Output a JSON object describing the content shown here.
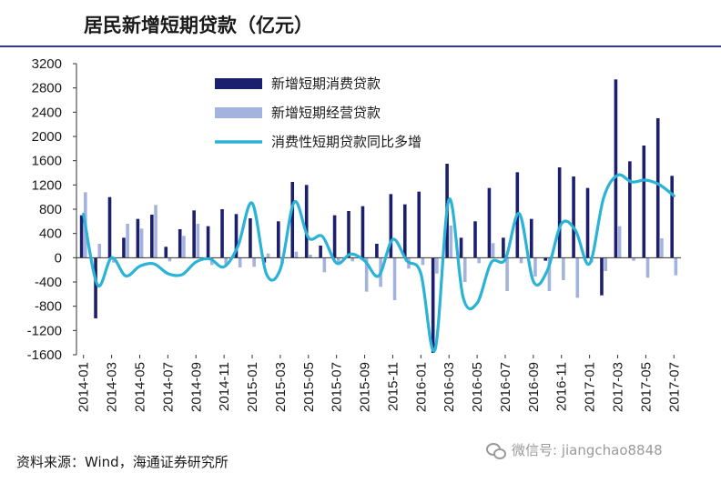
{
  "title": "居民新增短期贷款（亿元）",
  "source": "资料来源：Wind，海通证券研究所",
  "watermark": "微信号: jiangchao8848",
  "watermark_icon": "wechat-icon",
  "colors": {
    "consumer_bar": "#1c1f6e",
    "business_bar": "#a4b3de",
    "yoy_line": "#2ab3d6",
    "title_rule": "#2f3c8c"
  },
  "chart_data": {
    "type": "bar",
    "title": "居民新增短期贷款（亿元）",
    "xlabel": "",
    "ylabel": "",
    "ylim": [
      -1600,
      3200
    ],
    "yticks": [
      3200,
      2800,
      2400,
      2000,
      1600,
      1200,
      800,
      400,
      0,
      -400,
      -800,
      -1200,
      -1600
    ],
    "legend_position": "top-center",
    "grid": false,
    "categories": [
      "2014-01",
      "2014-02",
      "2014-03",
      "2014-04",
      "2014-05",
      "2014-06",
      "2014-07",
      "2014-08",
      "2014-09",
      "2014-10",
      "2014-11",
      "2014-12",
      "2015-01",
      "2015-02",
      "2015-03",
      "2015-04",
      "2015-05",
      "2015-06",
      "2015-07",
      "2015-08",
      "2015-09",
      "2015-10",
      "2015-11",
      "2015-12",
      "2016-01",
      "2016-02",
      "2016-03",
      "2016-04",
      "2016-05",
      "2016-06",
      "2016-07",
      "2016-08",
      "2016-09",
      "2016-10",
      "2016-11",
      "2016-12",
      "2017-01",
      "2017-02",
      "2017-03",
      "2017-04",
      "2017-05",
      "2017-06",
      "2017-07"
    ],
    "xtick_labels": [
      "2014-01",
      "2014-03",
      "2014-05",
      "2014-07",
      "2014-09",
      "2014-11",
      "2015-01",
      "2015-03",
      "2015-05",
      "2015-07",
      "2015-09",
      "2015-11",
      "2016-01",
      "2016-03",
      "2016-05",
      "2016-07",
      "2016-09",
      "2016-11",
      "2017-01",
      "2017-03",
      "2017-05",
      "2017-07"
    ],
    "series": [
      {
        "name": "新增短期消费贷款",
        "kind": "bar",
        "values": [
          700,
          -1000,
          1000,
          330,
          640,
          710,
          180,
          470,
          780,
          520,
          800,
          720,
          650,
          -80,
          600,
          1250,
          1200,
          200,
          700,
          770,
          850,
          230,
          1050,
          880,
          1090,
          -1570,
          1550,
          330,
          600,
          1150,
          330,
          1410,
          640,
          -50,
          1490,
          1340,
          1150,
          -620,
          2940,
          1590,
          1850,
          2300,
          1350
        ]
      },
      {
        "name": "新增短期经营贷款",
        "kind": "bar",
        "values": [
          1080,
          230,
          -80,
          560,
          480,
          870,
          -60,
          360,
          560,
          -120,
          -120,
          -160,
          -150,
          70,
          -100,
          100,
          50,
          -240,
          -100,
          -60,
          -560,
          -480,
          -700,
          -180,
          -120,
          -260,
          530,
          -400,
          -90,
          240,
          -550,
          -90,
          -310,
          -550,
          -370,
          -660,
          -80,
          -220,
          520,
          -50,
          -330,
          320,
          -290
        ]
      },
      {
        "name": "消费性短期贷款同比多增",
        "kind": "line",
        "values": [
          720,
          -450,
          0,
          -300,
          -140,
          -100,
          -260,
          -280,
          -70,
          -20,
          -150,
          200,
          900,
          -260,
          -190,
          920,
          330,
          350,
          -90,
          60,
          -50,
          -300,
          300,
          -50,
          -260,
          -1520,
          960,
          -650,
          -750,
          -80,
          -30,
          730,
          -390,
          -210,
          560,
          450,
          -100,
          990,
          1360,
          1250,
          1280,
          1200,
          1020
        ]
      }
    ]
  }
}
